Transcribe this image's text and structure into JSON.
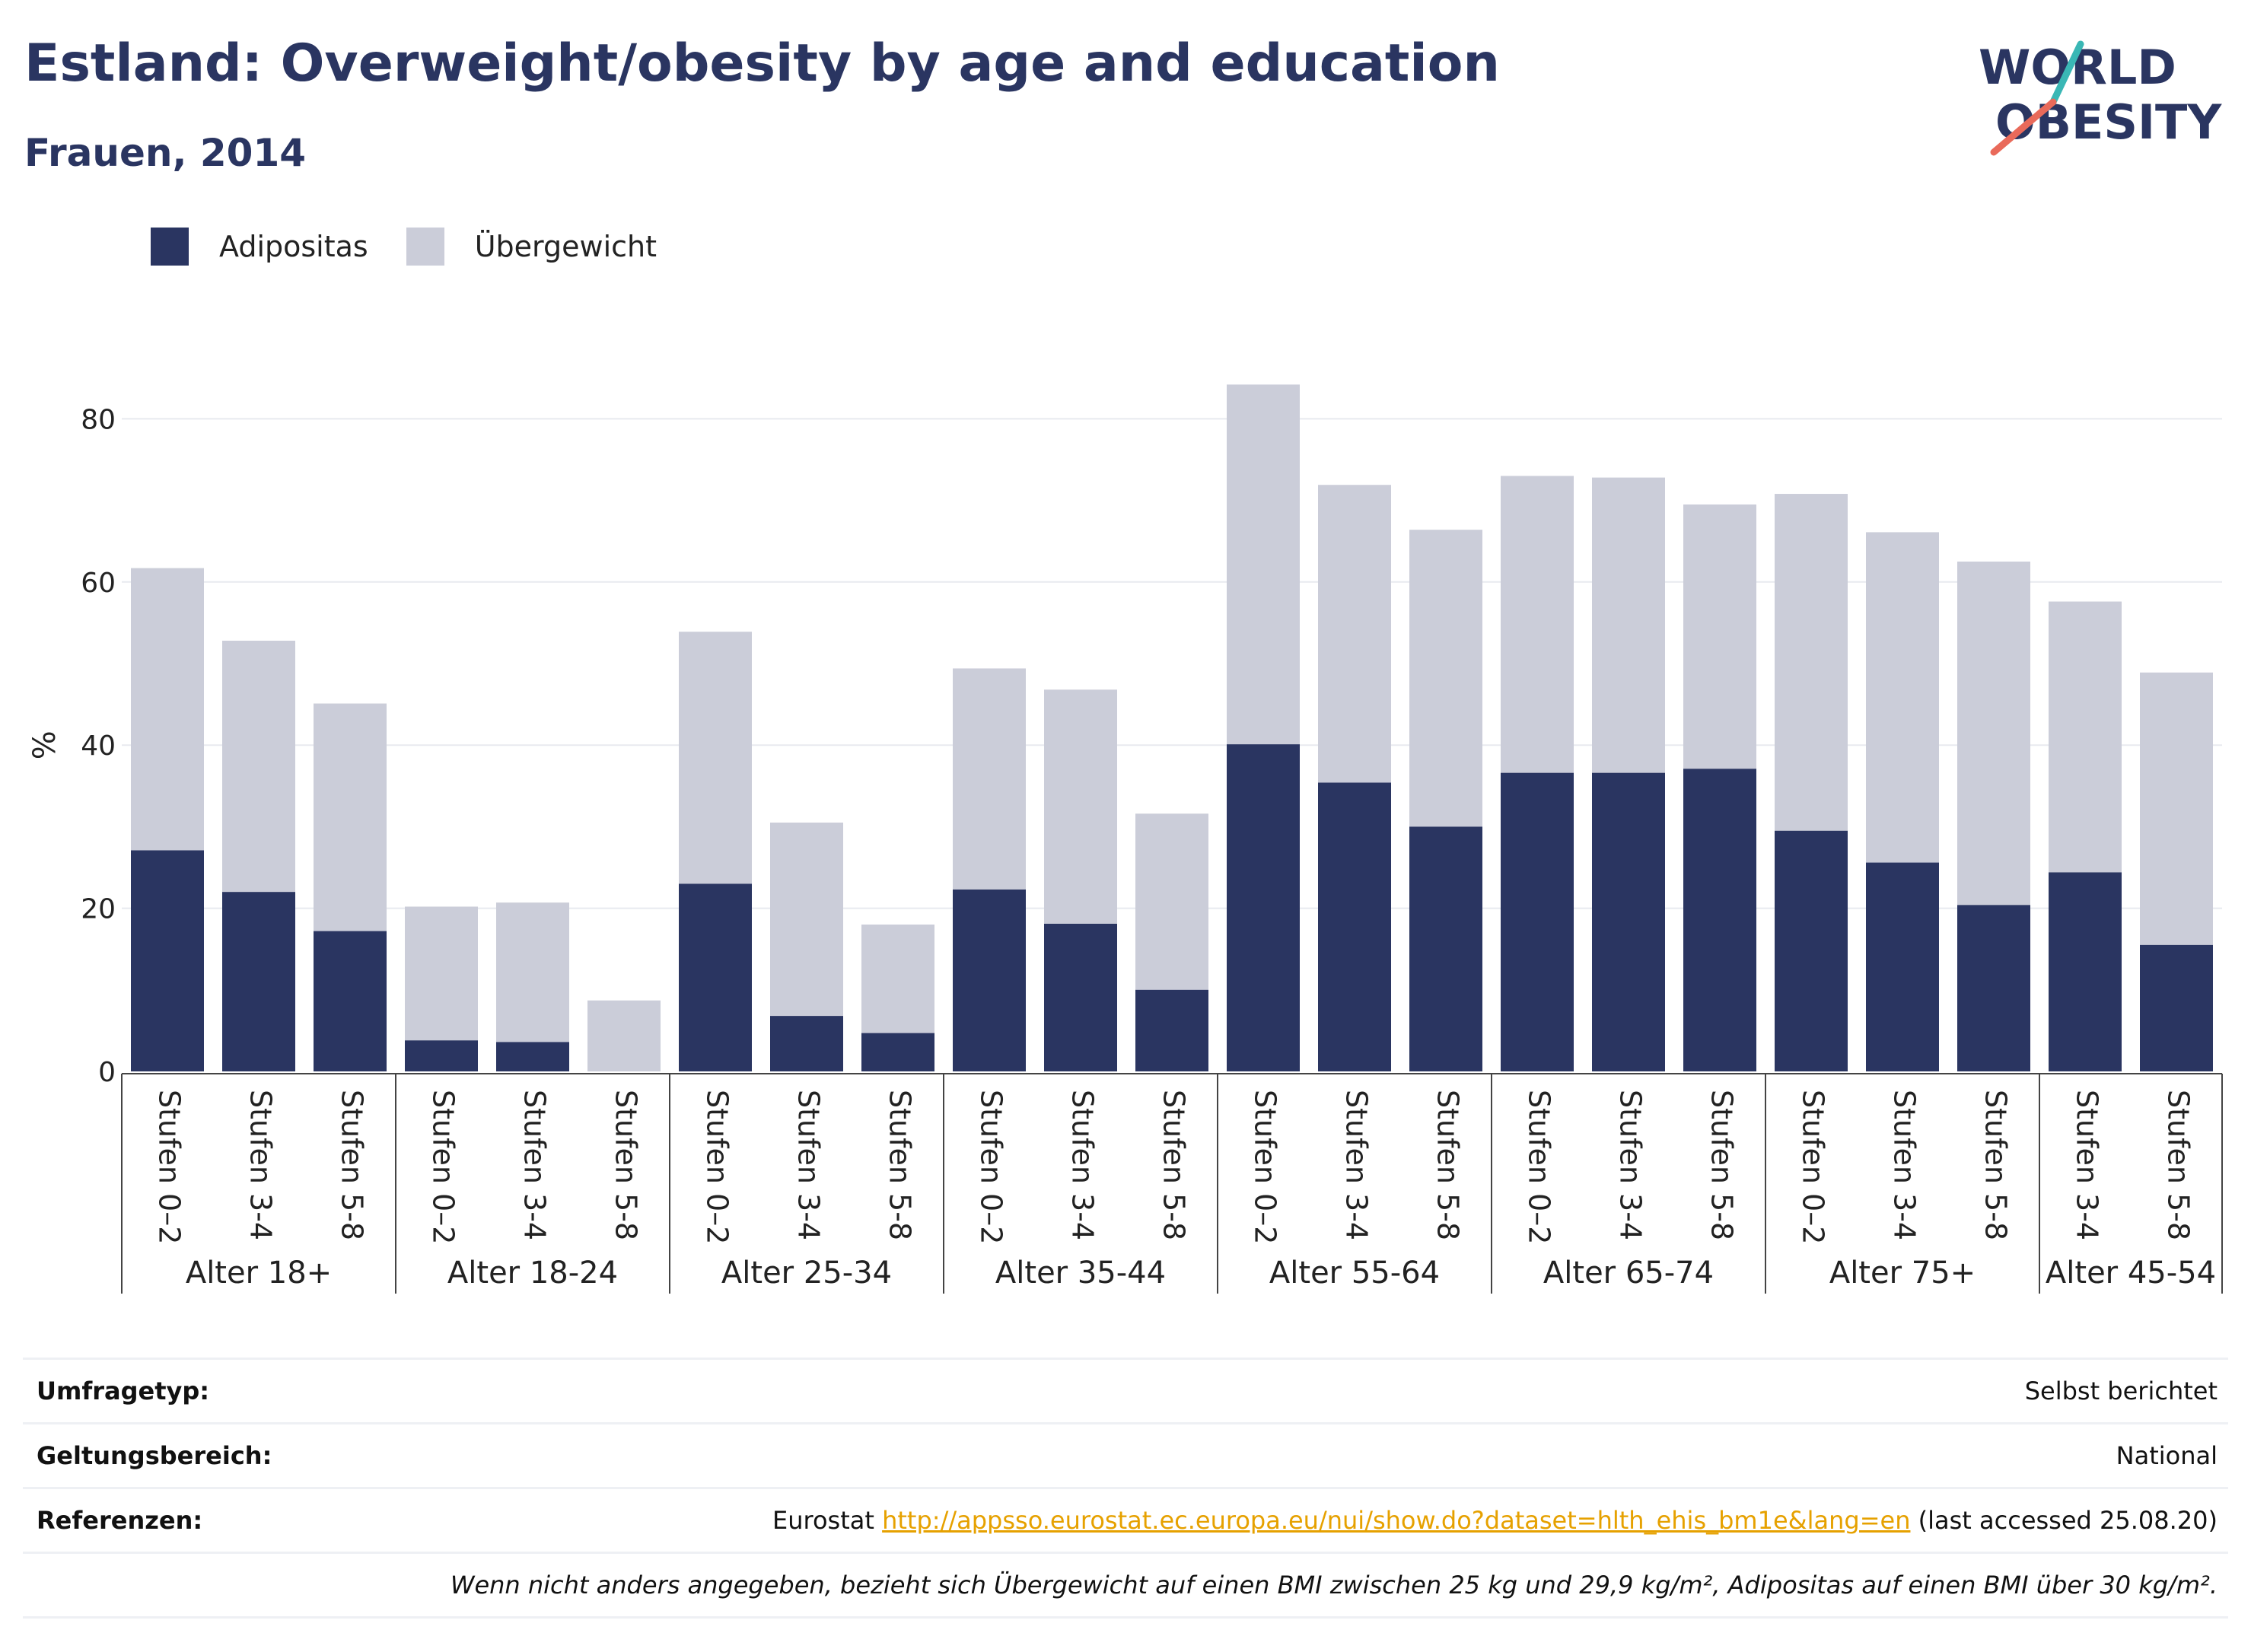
{
  "header": {
    "title": "Estland: Overweight/obesity by age and education",
    "subtitle": "Frauen, 2014"
  },
  "logo": {
    "line1": "WORLD",
    "line2": "OBESITY",
    "colors": {
      "text": "#2a3561",
      "stroke_top": "#3ab7b5",
      "stroke_bottom": "#e96a5a"
    }
  },
  "legend": [
    {
      "label": "Adipositas",
      "color": "#2a3561"
    },
    {
      "label": "Übergewicht",
      "color": "#cbcdd9"
    }
  ],
  "chart_data": {
    "type": "bar",
    "stacked": true,
    "ylabel": "%",
    "ylim": [
      0,
      90
    ],
    "yticks": [
      0,
      20,
      40,
      60,
      80
    ],
    "grid": true,
    "legend_position": "top-left",
    "groups": [
      {
        "label": "Alter 18+",
        "categories": [
          "Stufen 0–2",
          "Stufen 3-4",
          "Stufen 5-8"
        ]
      },
      {
        "label": "Alter 18-24",
        "categories": [
          "Stufen 0–2",
          "Stufen 3-4",
          "Stufen 5-8"
        ]
      },
      {
        "label": "Alter 25-34",
        "categories": [
          "Stufen 0–2",
          "Stufen 3-4",
          "Stufen 5-8"
        ]
      },
      {
        "label": "Alter 35-44",
        "categories": [
          "Stufen 0–2",
          "Stufen 3-4",
          "Stufen 5-8"
        ]
      },
      {
        "label": "Alter 55-64",
        "categories": [
          "Stufen 0–2",
          "Stufen 3-4",
          "Stufen 5-8"
        ]
      },
      {
        "label": "Alter 65-74",
        "categories": [
          "Stufen 0–2",
          "Stufen 3-4",
          "Stufen 5-8"
        ]
      },
      {
        "label": "Alter 75+",
        "categories": [
          "Stufen 0–2",
          "Stufen 3-4",
          "Stufen 5-8"
        ]
      },
      {
        "label": "Alter 45-54",
        "categories": [
          "Stufen 3-4",
          "Stufen 5-8"
        ]
      }
    ],
    "series": [
      {
        "name": "Adipositas",
        "color": "#2a3561",
        "values": [
          27.1,
          22.0,
          17.2,
          3.8,
          3.6,
          0.0,
          23.0,
          6.8,
          4.7,
          22.3,
          18.1,
          10.0,
          40.1,
          35.4,
          30.0,
          36.6,
          36.6,
          37.1,
          29.5,
          25.6,
          20.4,
          24.4,
          15.5
        ]
      },
      {
        "name": "Übergewicht",
        "color": "#cbcdd9",
        "values": [
          34.6,
          30.8,
          27.9,
          16.4,
          17.1,
          8.7,
          30.9,
          23.7,
          13.3,
          27.1,
          28.7,
          21.6,
          44.1,
          36.5,
          36.4,
          36.4,
          36.2,
          32.4,
          41.3,
          40.5,
          42.1,
          33.2,
          33.4
        ]
      }
    ]
  },
  "info": {
    "survey_label": "Umfragetyp:",
    "survey_value": "Selbst berichtet",
    "scope_label": "Geltungsbereich:",
    "scope_value": "National",
    "ref_label": "Referenzen:",
    "ref_prefix": "Eurostat",
    "ref_link": "http://appsso.eurostat.ec.europa.eu/nui/show.do?dataset=hlth_ehis_bm1e&lang=en",
    "ref_suffix": "(last accessed 25.08.20)",
    "note": "Wenn nicht anders angegeben, bezieht sich Übergewicht auf einen BMI zwischen 25 kg und 29,9 kg/m², Adipositas auf einen BMI über 30 kg/m²."
  }
}
